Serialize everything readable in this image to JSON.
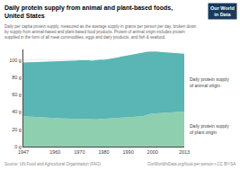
{
  "chart_data": {
    "type": "area",
    "stacked": true,
    "title": "Daily protein supply from animal and plant-based foods, United States",
    "subtitle": "Daily per capita protein supply, measured as the average supply in grams per person per day, broken down by\nsupply from animal-based and plant-based food products. Protein of animal origin includes protein supplied in the\nform of all meat commodities, eggs and dairy products, and fish & seafood.",
    "annotations": [
      "Source: UN Food and Agricultural Organization (FAO)",
      "OurWorldInData.org/food-per-person • CC BY-SA",
      "Our World\nin Data"
    ],
    "x": [
      1947,
      1948,
      1949,
      1950,
      1951,
      1952,
      1953,
      1954,
      1955,
      1956,
      1957,
      1958,
      1959,
      1960,
      1961,
      1962,
      1963,
      1964,
      1965,
      1966,
      1967,
      1968,
      1969,
      1970,
      1971,
      1972,
      1973,
      1974,
      1975,
      1976,
      1977,
      1978,
      1979,
      1980,
      1981,
      1982,
      1983,
      1984,
      1985,
      1986,
      1987,
      1988,
      1989,
      1990,
      1991,
      1992,
      1993,
      1994,
      1995,
      1996,
      1997,
      1998,
      1999,
      2000,
      2001,
      2002,
      2003,
      2004,
      2005,
      2006,
      2007,
      2008,
      2009,
      2010,
      2011,
      2012,
      2013
    ],
    "series": [
      {
        "name": "Daily protein supply\nof plant origin",
        "color": "#8ecfb0",
        "values": [
          35.0,
          34.8,
          34.5,
          34.2,
          34.0,
          33.8,
          33.6,
          33.4,
          33.2,
          33.1,
          33.0,
          32.9,
          32.8,
          32.7,
          32.6,
          32.5,
          32.4,
          32.3,
          32.2,
          32.1,
          32.0,
          32.0,
          32.0,
          32.0,
          31.8,
          31.6,
          31.4,
          31.2,
          31.0,
          31.2,
          31.4,
          31.6,
          31.8,
          32.0,
          32.2,
          32.4,
          32.5,
          32.6,
          32.8,
          33.0,
          33.2,
          33.3,
          33.2,
          33.2,
          33.4,
          33.6,
          33.8,
          34.0,
          34.2,
          35.0,
          36.0,
          37.0,
          37.5,
          38.0,
          38.2,
          38.5,
          38.8,
          39.0,
          39.2,
          39.5,
          39.8,
          40.0,
          40.2,
          40.3,
          40.4,
          40.3,
          40.2
        ]
      },
      {
        "name": "Daily protein supply\nof animal origin",
        "color": "#5ab5b5",
        "values": [
          62.0,
          62.3,
          62.5,
          63.0,
          63.2,
          63.4,
          63.6,
          63.8,
          64.0,
          64.2,
          64.3,
          64.5,
          64.8,
          65.0,
          65.2,
          65.4,
          65.6,
          65.8,
          66.0,
          66.3,
          66.6,
          67.0,
          67.2,
          67.5,
          67.8,
          68.0,
          68.2,
          68.3,
          68.0,
          68.2,
          68.4,
          68.5,
          68.6,
          68.0,
          68.2,
          68.4,
          68.6,
          69.0,
          69.5,
          70.0,
          70.5,
          71.0,
          71.5,
          72.0,
          72.5,
          73.0,
          73.5,
          74.0,
          74.0,
          73.5,
          73.0,
          72.5,
          72.2,
          72.0,
          71.5,
          71.0,
          70.5,
          70.2,
          70.0,
          69.5,
          69.0,
          68.5,
          68.0,
          67.8,
          67.5,
          67.2,
          67.0
        ]
      }
    ],
    "xlim": [
      1947,
      2013
    ],
    "xticks": [
      1947,
      1960,
      1970,
      1980,
      1990,
      2000,
      2013
    ],
    "ylim": [
      0,
      112
    ],
    "yticks": [
      {
        "value": 0,
        "label": "0 g"
      },
      {
        "value": 20,
        "label": "20 g"
      },
      {
        "value": 40,
        "label": "40 g"
      },
      {
        "value": 60,
        "label": "60 g"
      },
      {
        "value": 80,
        "label": "80 g"
      },
      {
        "value": 100,
        "label": "100 g"
      }
    ],
    "grid": "y"
  }
}
